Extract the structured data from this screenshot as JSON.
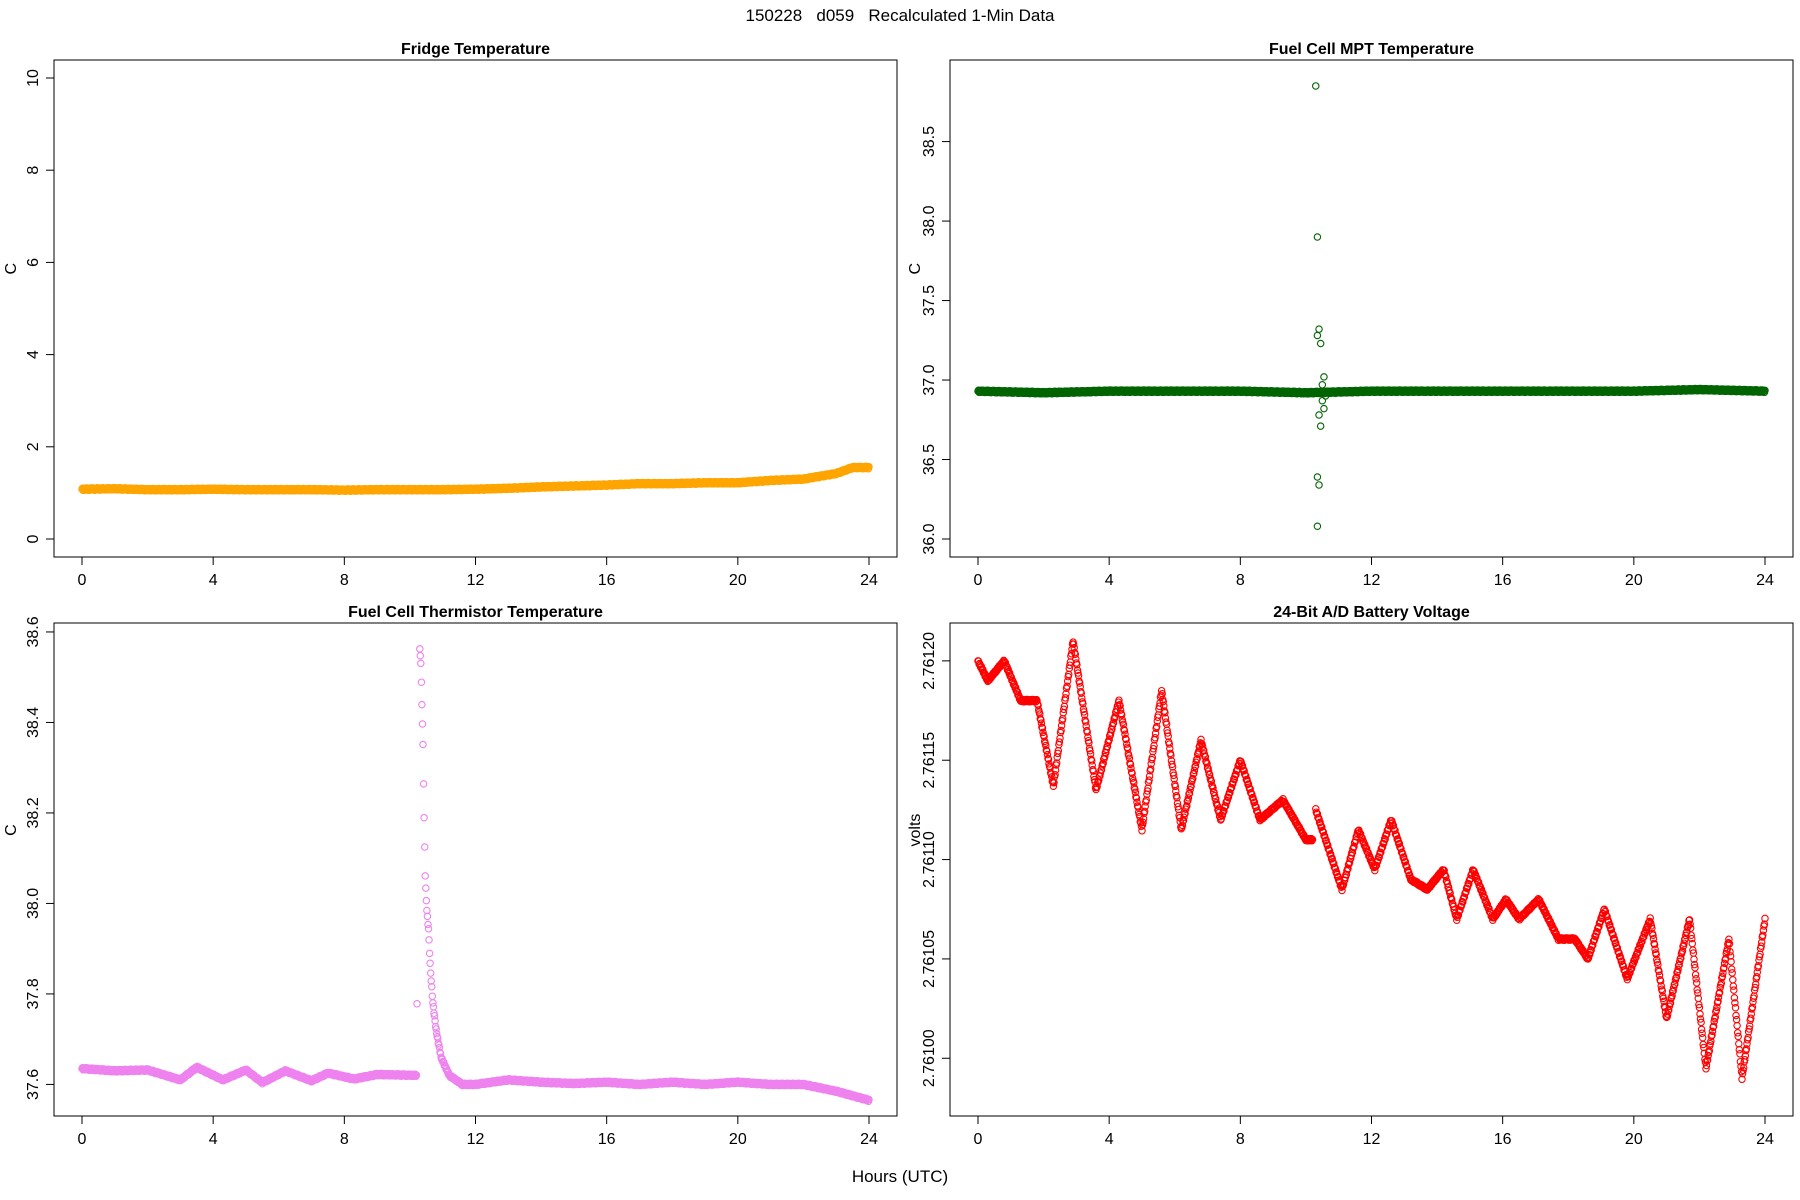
{
  "page": {
    "title": "150228   d059   Recalculated 1-Min Data",
    "xlabel": "Hours (UTC)"
  },
  "chart_data": [
    {
      "type": "scatter",
      "title": "Fridge Temperature",
      "xlabel": "Hours (UTC)",
      "ylabel": "C",
      "color": "#FFA500",
      "xlim": [
        0,
        24
      ],
      "ylim": [
        0,
        10
      ],
      "xticks": [
        0,
        4,
        8,
        12,
        16,
        20,
        24
      ],
      "yticks": [
        0,
        2,
        4,
        6,
        8,
        10
      ],
      "ytick_labels": [
        "0",
        "2",
        "4",
        "6",
        "8",
        "10"
      ],
      "grid": false,
      "series": [
        {
          "values": [
            [
              0,
              1.08
            ],
            [
              1,
              1.09
            ],
            [
              2,
              1.07
            ],
            [
              3,
              1.07
            ],
            [
              4,
              1.08
            ],
            [
              5,
              1.07
            ],
            [
              6,
              1.07
            ],
            [
              7,
              1.07
            ],
            [
              8,
              1.06
            ],
            [
              9,
              1.07
            ],
            [
              10,
              1.07
            ],
            [
              11,
              1.07
            ],
            [
              12,
              1.08
            ],
            [
              13,
              1.1
            ],
            [
              14,
              1.13
            ],
            [
              15,
              1.15
            ],
            [
              16,
              1.17
            ],
            [
              17,
              1.2
            ],
            [
              18,
              1.2
            ],
            [
              19,
              1.22
            ],
            [
              20,
              1.22
            ],
            [
              21,
              1.27
            ],
            [
              22,
              1.3
            ],
            [
              23,
              1.42
            ],
            [
              23.5,
              1.55
            ],
            [
              24,
              1.55
            ]
          ]
        }
      ],
      "annotations": []
    },
    {
      "type": "scatter",
      "title": "Fuel Cell MPT Temperature",
      "xlabel": "Hours (UTC)",
      "ylabel": "C",
      "color": "#006400",
      "xlim": [
        0,
        24
      ],
      "ylim": [
        36.0,
        38.9
      ],
      "xticks": [
        0,
        4,
        8,
        12,
        16,
        20,
        24
      ],
      "yticks": [
        36.0,
        36.5,
        37.0,
        37.5,
        38.0,
        38.5
      ],
      "ytick_labels": [
        "36.0",
        "36.5",
        "37.0",
        "37.5",
        "38.0",
        "38.5"
      ],
      "grid": false,
      "series": [
        {
          "baseline": 36.93,
          "values": [
            [
              0,
              36.93
            ],
            [
              2,
              36.92
            ],
            [
              4,
              36.93
            ],
            [
              6,
              36.93
            ],
            [
              8,
              36.93
            ],
            [
              10,
              36.92
            ],
            [
              12,
              36.93
            ],
            [
              14,
              36.93
            ],
            [
              16,
              36.93
            ],
            [
              18,
              36.93
            ],
            [
              20,
              36.93
            ],
            [
              22,
              36.94
            ],
            [
              24,
              36.93
            ]
          ],
          "outliers": [
            [
              10.3,
              38.85
            ],
            [
              10.35,
              37.9
            ],
            [
              10.4,
              37.32
            ],
            [
              10.35,
              37.28
            ],
            [
              10.45,
              37.23
            ],
            [
              10.55,
              37.02
            ],
            [
              10.5,
              36.97
            ],
            [
              10.45,
              36.92
            ],
            [
              10.6,
              36.9
            ],
            [
              10.5,
              36.87
            ],
            [
              10.55,
              36.82
            ],
            [
              10.4,
              36.78
            ],
            [
              10.45,
              36.71
            ],
            [
              10.35,
              36.39
            ],
            [
              10.4,
              36.34
            ],
            [
              10.35,
              36.08
            ]
          ]
        }
      ],
      "annotations": []
    },
    {
      "type": "scatter",
      "title": "Fuel Cell Thermistor Temperature",
      "xlabel": "Hours (UTC)",
      "ylabel": "C",
      "color": "#EE82EE",
      "xlim": [
        0,
        24
      ],
      "ylim": [
        37.57,
        38.58
      ],
      "xticks": [
        0,
        4,
        8,
        12,
        16,
        20,
        24
      ],
      "yticks": [
        37.6,
        37.8,
        38.0,
        38.2,
        38.4,
        38.6
      ],
      "ytick_labels": [
        "37.6",
        "37.8",
        "38.0",
        "38.2",
        "38.4",
        "38.6"
      ],
      "grid": false,
      "series": [
        {
          "values": [
            [
              0,
              37.635
            ],
            [
              1,
              37.63
            ],
            [
              2,
              37.632
            ],
            [
              3,
              37.61
            ],
            [
              3.5,
              37.638
            ],
            [
              4.3,
              37.61
            ],
            [
              5,
              37.632
            ],
            [
              5.5,
              37.604
            ],
            [
              6.2,
              37.63
            ],
            [
              7,
              37.608
            ],
            [
              7.5,
              37.625
            ],
            [
              8.3,
              37.612
            ],
            [
              9,
              37.622
            ],
            [
              10.2,
              37.62
            ],
            [
              10.3,
              38.56
            ],
            [
              10.33,
              38.54
            ],
            [
              10.36,
              38.46
            ],
            [
              10.4,
              38.35
            ],
            [
              10.43,
              38.2
            ],
            [
              10.47,
              38.05
            ],
            [
              10.52,
              37.98
            ],
            [
              10.57,
              37.94
            ],
            [
              10.62,
              37.86
            ],
            [
              10.7,
              37.78
            ],
            [
              10.8,
              37.72
            ],
            [
              10.95,
              37.66
            ],
            [
              11.2,
              37.62
            ],
            [
              11.6,
              37.6
            ],
            [
              12,
              37.6
            ],
            [
              13,
              37.61
            ],
            [
              14,
              37.605
            ],
            [
              15,
              37.602
            ],
            [
              16,
              37.605
            ],
            [
              17,
              37.6
            ],
            [
              18,
              37.605
            ],
            [
              19,
              37.6
            ],
            [
              20,
              37.605
            ],
            [
              21,
              37.6
            ],
            [
              22,
              37.6
            ],
            [
              23,
              37.585
            ],
            [
              24,
              37.565
            ]
          ]
        }
      ],
      "annotations": []
    },
    {
      "type": "scatter",
      "title": "24-Bit A/D Battery Voltage",
      "xlabel": "Hours (UTC)",
      "ylabel": "volts",
      "color": "#FF0000",
      "xlim": [
        0,
        24
      ],
      "ylim": [
        2.76098,
        2.76121
      ],
      "xticks": [
        0,
        4,
        8,
        12,
        16,
        20,
        24
      ],
      "yticks": [
        2.761,
        2.76105,
        2.7611,
        2.76115,
        2.7612
      ],
      "ytick_labels": [
        "2.76100",
        "2.76105",
        "2.76110",
        "2.76115",
        "2.76120"
      ],
      "grid": false,
      "series": [
        {
          "values": [
            [
              0,
              2.7612
            ],
            [
              0.3,
              2.76119
            ],
            [
              0.8,
              2.7612
            ],
            [
              1.3,
              2.76118
            ],
            [
              1.8,
              2.76118
            ],
            [
              2.3,
              2.761137
            ],
            [
              2.9,
              2.76121
            ],
            [
              3.6,
              2.761135
            ],
            [
              4.3,
              2.76118
            ],
            [
              5,
              2.761115
            ],
            [
              5.6,
              2.761185
            ],
            [
              6.2,
              2.761115
            ],
            [
              6.8,
              2.76116
            ],
            [
              7.4,
              2.76112
            ],
            [
              8,
              2.76115
            ],
            [
              8.6,
              2.76112
            ],
            [
              9.3,
              2.76113
            ],
            [
              10,
              2.76111
            ],
            [
              10.2,
              2.76111
            ],
            [
              10.3,
              2.761125
            ],
            [
              11.1,
              2.761085
            ],
            [
              11.6,
              2.761115
            ],
            [
              12.1,
              2.761095
            ],
            [
              12.6,
              2.76112
            ],
            [
              13.2,
              2.76109
            ],
            [
              13.7,
              2.761085
            ],
            [
              14.2,
              2.761095
            ],
            [
              14.6,
              2.76107
            ],
            [
              15.1,
              2.761095
            ],
            [
              15.7,
              2.76107
            ],
            [
              16.1,
              2.76108
            ],
            [
              16.5,
              2.76107
            ],
            [
              17.1,
              2.76108
            ],
            [
              17.7,
              2.76106
            ],
            [
              18.2,
              2.76106
            ],
            [
              18.6,
              2.76105
            ],
            [
              19.1,
              2.761075
            ],
            [
              19.8,
              2.76104
            ],
            [
              20.5,
              2.76107
            ],
            [
              21,
              2.76102
            ],
            [
              21.7,
              2.76107
            ],
            [
              22.2,
              2.760995
            ],
            [
              22.9,
              2.76106
            ],
            [
              23.3,
              2.76099
            ],
            [
              24,
              2.76107
            ]
          ]
        }
      ],
      "annotations": []
    }
  ]
}
